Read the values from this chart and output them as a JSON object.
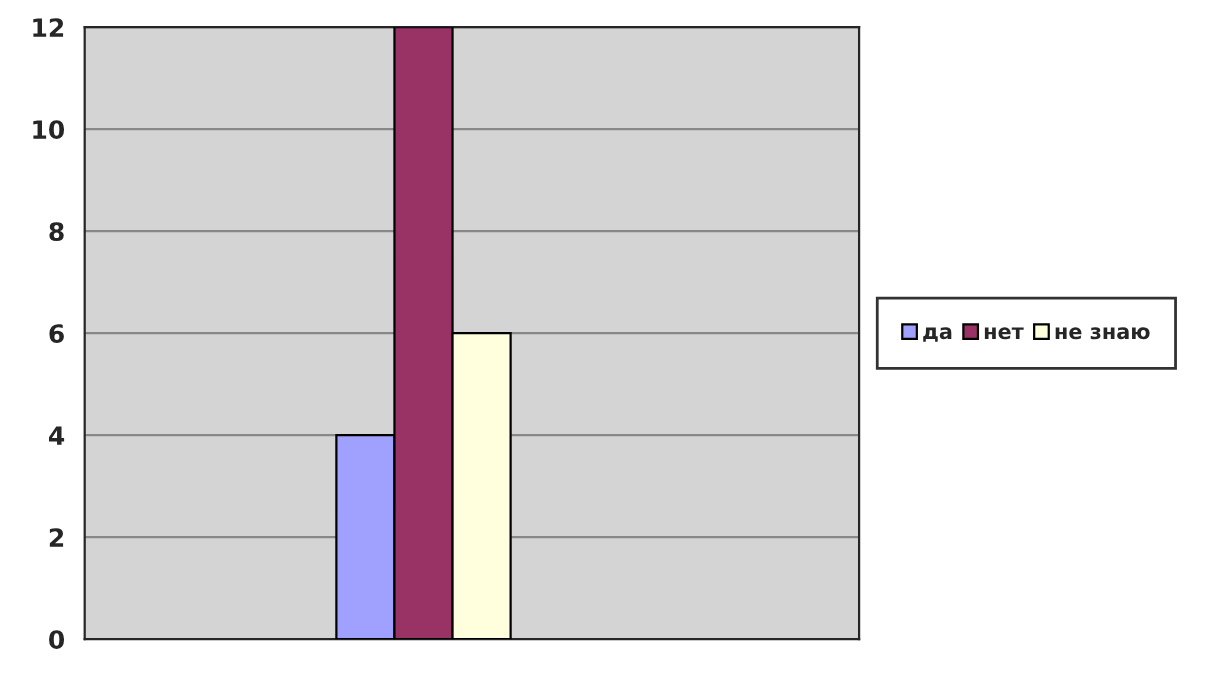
{
  "chart_data": {
    "type": "bar",
    "categories": [
      null
    ],
    "series": [
      {
        "name": "да",
        "color": "#a0a0ff",
        "values": [
          4
        ]
      },
      {
        "name": "нет",
        "color": "#993366",
        "values": [
          12
        ]
      },
      {
        "name": "не знаю",
        "color": "#ffffdd",
        "values": [
          6
        ]
      }
    ],
    "ylim": [
      0,
      12
    ],
    "yticks": [
      0,
      2,
      4,
      6,
      8,
      10,
      12
    ],
    "grid": "y",
    "legend": "right"
  }
}
